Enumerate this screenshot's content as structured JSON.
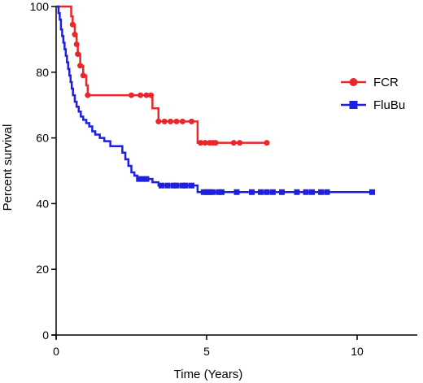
{
  "chart_data": {
    "type": "line",
    "subtype": "kaplan-meier",
    "title": "",
    "xlabel": "Time (Years)",
    "ylabel": "Percent survival",
    "xlim": [
      0,
      12
    ],
    "ylim": [
      0,
      100
    ],
    "x_ticks": [
      0,
      5,
      10
    ],
    "y_ticks": [
      0,
      20,
      40,
      60,
      80,
      100
    ],
    "grid": false,
    "legend_position": "right",
    "series": [
      {
        "name": "FCR",
        "color": "#e8262b",
        "marker": "circle",
        "steps": [
          [
            0,
            100
          ],
          [
            0.5,
            97
          ],
          [
            0.55,
            94.5
          ],
          [
            0.62,
            91.5
          ],
          [
            0.68,
            88.5
          ],
          [
            0.72,
            85.5
          ],
          [
            0.8,
            82
          ],
          [
            0.9,
            79
          ],
          [
            1.0,
            76
          ],
          [
            1.05,
            73
          ],
          [
            3.2,
            69
          ],
          [
            3.4,
            65
          ],
          [
            4.7,
            58.5
          ]
        ],
        "censored": [
          [
            0.55,
            94.5
          ],
          [
            0.62,
            91.5
          ],
          [
            0.68,
            88.5
          ],
          [
            0.72,
            85.5
          ],
          [
            0.8,
            82
          ],
          [
            0.9,
            79
          ],
          [
            1.05,
            73
          ],
          [
            2.5,
            73
          ],
          [
            2.8,
            73
          ],
          [
            3.0,
            73
          ],
          [
            3.15,
            73
          ],
          [
            3.4,
            65
          ],
          [
            3.6,
            65
          ],
          [
            3.8,
            65
          ],
          [
            4.0,
            65
          ],
          [
            4.2,
            65
          ],
          [
            4.5,
            65
          ],
          [
            4.8,
            58.5
          ],
          [
            4.95,
            58.5
          ],
          [
            5.1,
            58.5
          ],
          [
            5.2,
            58.5
          ],
          [
            5.3,
            58.5
          ],
          [
            5.9,
            58.5
          ],
          [
            6.1,
            58.5
          ],
          [
            7.0,
            58.5
          ]
        ],
        "end_x": 7.0
      },
      {
        "name": "FluBu",
        "color": "#1f1fe0",
        "marker": "square",
        "steps": [
          [
            0,
            100
          ],
          [
            0.08,
            98
          ],
          [
            0.12,
            96
          ],
          [
            0.16,
            93
          ],
          [
            0.2,
            91
          ],
          [
            0.24,
            89
          ],
          [
            0.28,
            87
          ],
          [
            0.32,
            85
          ],
          [
            0.36,
            83
          ],
          [
            0.4,
            81
          ],
          [
            0.44,
            79
          ],
          [
            0.48,
            77
          ],
          [
            0.52,
            75
          ],
          [
            0.56,
            73
          ],
          [
            0.62,
            71
          ],
          [
            0.68,
            69.5
          ],
          [
            0.75,
            68
          ],
          [
            0.82,
            66.5
          ],
          [
            0.9,
            65.5
          ],
          [
            1.0,
            64.5
          ],
          [
            1.1,
            63.5
          ],
          [
            1.2,
            62
          ],
          [
            1.3,
            61
          ],
          [
            1.45,
            60
          ],
          [
            1.6,
            59
          ],
          [
            1.8,
            57.5
          ],
          [
            2.2,
            55.5
          ],
          [
            2.3,
            53.5
          ],
          [
            2.4,
            51.5
          ],
          [
            2.5,
            49.5
          ],
          [
            2.6,
            48.5
          ],
          [
            2.7,
            47.5
          ],
          [
            3.2,
            46.5
          ],
          [
            3.4,
            45.5
          ],
          [
            4.7,
            43.5
          ]
        ],
        "censored": [
          [
            2.75,
            47.5
          ],
          [
            2.9,
            47.5
          ],
          [
            3.0,
            47.5
          ],
          [
            3.5,
            45.5
          ],
          [
            3.7,
            45.5
          ],
          [
            3.9,
            45.5
          ],
          [
            4.0,
            45.5
          ],
          [
            4.2,
            45.5
          ],
          [
            4.3,
            45.5
          ],
          [
            4.5,
            45.5
          ],
          [
            4.9,
            43.5
          ],
          [
            5.0,
            43.5
          ],
          [
            5.1,
            43.5
          ],
          [
            5.2,
            43.5
          ],
          [
            5.4,
            43.5
          ],
          [
            5.5,
            43.5
          ],
          [
            6.0,
            43.5
          ],
          [
            6.5,
            43.5
          ],
          [
            6.8,
            43.5
          ],
          [
            7.0,
            43.5
          ],
          [
            7.2,
            43.5
          ],
          [
            7.5,
            43.5
          ],
          [
            8.0,
            43.5
          ],
          [
            8.3,
            43.5
          ],
          [
            8.5,
            43.5
          ],
          [
            8.8,
            43.5
          ],
          [
            9.0,
            43.5
          ],
          [
            10.5,
            43.5
          ]
        ],
        "end_x": 10.5
      }
    ]
  }
}
